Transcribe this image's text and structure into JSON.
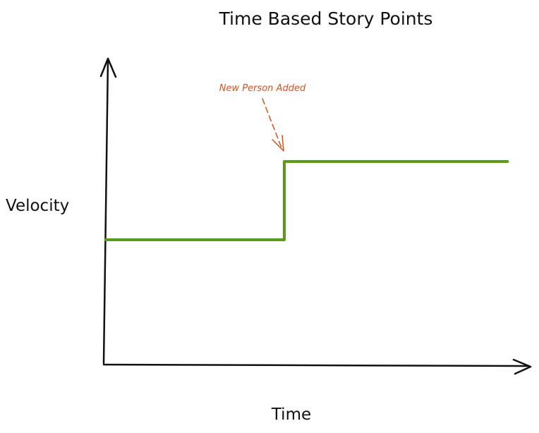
{
  "chart_data": {
    "type": "line",
    "title": "Time Based Story Points",
    "xlabel": "Time",
    "ylabel": "Velocity",
    "x": [
      0,
      1,
      1,
      2.25
    ],
    "series": [
      {
        "values": [
          1,
          1,
          2,
          2
        ]
      }
    ],
    "xlim": [
      0,
      2.3
    ],
    "ylim": [
      0,
      2.6
    ],
    "grid": false,
    "annotations": [
      {
        "text": "New Person Added",
        "x": 1,
        "y": 2
      }
    ],
    "colors": {
      "series": "#5a9a1d",
      "annotation": "#d4521f",
      "axis": "#111111"
    }
  }
}
